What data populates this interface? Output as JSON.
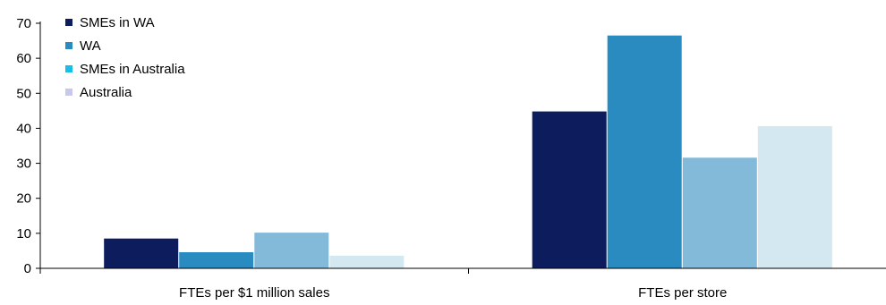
{
  "chart_data": {
    "type": "bar",
    "categories": [
      "FTEs per $1 million sales",
      "FTEs per store"
    ],
    "series": [
      {
        "name": "SMEs in WA",
        "values": [
          8.5,
          44.8
        ],
        "color": "#0c1c5c"
      },
      {
        "name": "WA",
        "values": [
          4.6,
          66.5
        ],
        "color": "#2a8bc0"
      },
      {
        "name": "SMEs in Australia",
        "values": [
          10.2,
          31.6
        ],
        "color": "#84bad9"
      },
      {
        "name": "Australia",
        "values": [
          3.6,
          40.6
        ],
        "color": "#d3e8f0"
      }
    ],
    "legend_swatch_colors": [
      "#0c1c5c",
      "#2a8bc0",
      "#13c0e8",
      "#c8c8ee"
    ],
    "ylim": [
      0,
      70
    ],
    "yticks": [
      "0",
      "10",
      "20",
      "30",
      "40",
      "50",
      "60",
      "70"
    ],
    "title": "",
    "xlabel": "",
    "ylabel": "",
    "grid": false,
    "legend_position": "top-left"
  }
}
